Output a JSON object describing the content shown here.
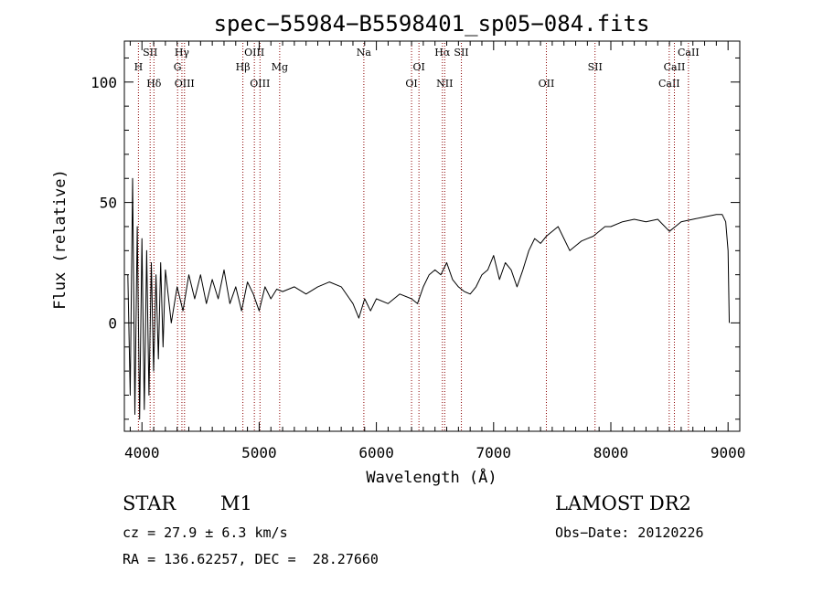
{
  "chart_data": {
    "type": "line",
    "title": "spec−55984−B5598401_sp05−084.fits",
    "xlabel": "Wavelength (Å)",
    "ylabel": "Flux (relative)",
    "xlim": [
      3850,
      9100
    ],
    "ylim": [
      -45,
      117
    ],
    "xticks": [
      4000,
      5000,
      6000,
      7000,
      8000,
      9000
    ],
    "yticks": [
      0,
      50,
      100
    ],
    "grid": false,
    "line_color": "#000000",
    "marker_color": "#8b0000",
    "series": [
      {
        "x": [
          3880,
          3900,
          3920,
          3940,
          3960,
          3980,
          4000,
          4020,
          4040,
          4060,
          4080,
          4100,
          4120,
          4140,
          4160,
          4180,
          4200,
          4250,
          4300,
          4350,
          4400,
          4450,
          4500,
          4550,
          4600,
          4650,
          4700,
          4750,
          4800,
          4850,
          4900,
          4950,
          5000,
          5050,
          5100,
          5150,
          5200,
          5300,
          5400,
          5500,
          5600,
          5700,
          5800,
          5850,
          5900,
          5950,
          6000,
          6100,
          6200,
          6300,
          6350,
          6400,
          6450,
          6500,
          6550,
          6600,
          6650,
          6700,
          6750,
          6800,
          6850,
          6900,
          6950,
          7000,
          7050,
          7100,
          7150,
          7200,
          7250,
          7300,
          7350,
          7400,
          7450,
          7500,
          7550,
          7600,
          7650,
          7700,
          7750,
          7800,
          7850,
          7900,
          7950,
          8000,
          8100,
          8200,
          8300,
          8400,
          8500,
          8550,
          8600,
          8700,
          8800,
          8900,
          8950,
          8980,
          9000,
          9010
        ],
        "y": [
          20,
          -30,
          60,
          -38,
          40,
          -40,
          35,
          -36,
          30,
          -30,
          25,
          -20,
          20,
          -15,
          25,
          -10,
          22,
          0,
          15,
          5,
          20,
          10,
          20,
          8,
          18,
          10,
          22,
          8,
          15,
          5,
          17,
          12,
          5,
          15,
          10,
          14,
          13,
          15,
          12,
          15,
          17,
          15,
          8,
          2,
          10,
          5,
          10,
          8,
          12,
          10,
          8,
          15,
          20,
          22,
          20,
          25,
          18,
          15,
          13,
          12,
          15,
          20,
          22,
          28,
          18,
          25,
          22,
          15,
          22,
          30,
          35,
          33,
          36,
          38,
          40,
          35,
          30,
          32,
          34,
          35,
          36,
          38,
          40,
          40,
          42,
          43,
          42,
          43,
          38,
          40,
          42,
          43,
          44,
          45,
          45,
          42,
          30,
          0
        ]
      }
    ],
    "line_markers": [
      {
        "wavelength": 3970,
        "label": "H",
        "row": 2
      },
      {
        "wavelength": 4070,
        "label": "SII",
        "row": 1
      },
      {
        "wavelength": 4102,
        "label": "Hδ",
        "row": 3
      },
      {
        "wavelength": 4304,
        "label": "G",
        "row": 2
      },
      {
        "wavelength": 4341,
        "label": "Hγ",
        "row": 1
      },
      {
        "wavelength": 4363,
        "label": "OIII",
        "row": 3
      },
      {
        "wavelength": 4861,
        "label": "Hβ",
        "row": 2
      },
      {
        "wavelength": 4959,
        "label": "OIII",
        "row": 1
      },
      {
        "wavelength": 5007,
        "label": "OIII",
        "row": 3
      },
      {
        "wavelength": 5175,
        "label": "Mg",
        "row": 2
      },
      {
        "wavelength": 5893,
        "label": "Na",
        "row": 1
      },
      {
        "wavelength": 6300,
        "label": "OI",
        "row": 3
      },
      {
        "wavelength": 6363,
        "label": "OI",
        "row": 2
      },
      {
        "wavelength": 6563,
        "label": "Hα",
        "row": 1
      },
      {
        "wavelength": 6583,
        "label": "NII",
        "row": 3
      },
      {
        "wavelength": 6725,
        "label": "SII",
        "row": 1
      },
      {
        "wavelength": 7450,
        "label": "OII",
        "row": 3
      },
      {
        "wavelength": 7865,
        "label": "SII",
        "row": 2
      },
      {
        "wavelength": 8498,
        "label": "CaII",
        "row": 3
      },
      {
        "wavelength": 8542,
        "label": "CaII",
        "row": 2
      },
      {
        "wavelength": 8662,
        "label": "CaII",
        "row": 1
      }
    ]
  },
  "info": {
    "object_class": "STAR",
    "subclass": "M1",
    "survey": "LAMOST DR2",
    "redshift": "cz = 27.9 ± 6.3 km/s",
    "obs_date": "Obs−Date: 20120226",
    "coords": "RA = 136.62257, DEC =  28.27660"
  }
}
